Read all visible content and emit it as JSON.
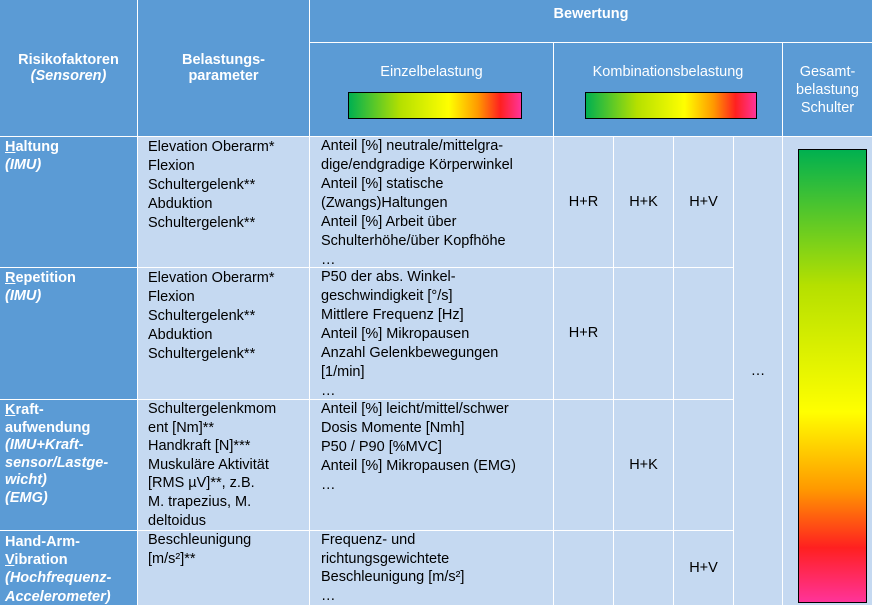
{
  "header": {
    "risk_title": "Risikofaktoren",
    "risk_subtitle": "(Sensoren)",
    "param_title_1": "Belastungs-",
    "param_title_2": "parameter",
    "rating": "Bewertung",
    "single": "Einzelbelastung",
    "combo": "Kombinationsbelastung",
    "total_1": "Gesamt-",
    "total_2": "belastung",
    "total_3": "Schulter"
  },
  "rows": [
    {
      "risk_lines": [
        {
          "first": "H",
          "rest": "altung"
        },
        {
          "text": "(IMU)"
        }
      ],
      "params": [
        "Elevation Oberarm*",
        "Flexion",
        "Schultergelenk**",
        "Abduktion",
        "Schultergelenk**"
      ],
      "metrics": [
        "Anteil [%] neutrale/mittelgra-",
        "dige/endgradige Körperwinkel",
        "Anteil [%] statische",
        "(Zwangs)Haltungen",
        "Anteil [%] Arbeit über",
        "Schulterhöhe/über Kopfhöhe",
        "…"
      ],
      "combos": [
        "H+R",
        "H+K",
        "H+V"
      ]
    },
    {
      "risk_lines": [
        {
          "first": "R",
          "rest": "epetition"
        },
        {
          "text": "(IMU)"
        }
      ],
      "params": [
        "Elevation Oberarm*",
        "Flexion",
        "Schultergelenk**",
        "Abduktion",
        "Schultergelenk**"
      ],
      "metrics": [
        "P50 der abs. Winkel-",
        "geschwindigkeit [°/s]",
        "Mittlere Frequenz [Hz]",
        "Anteil [%] Mikropausen",
        "Anzahl Gelenkbewegungen",
        "[1/min]",
        "…"
      ],
      "combos": [
        "H+R",
        "",
        ""
      ]
    },
    {
      "risk_lines": [
        {
          "first": "K",
          "rest": "raft-"
        },
        {
          "text": "aufwendung"
        },
        {
          "text": "(IMU+Kraft-"
        },
        {
          "text": "sensor/Lastge-"
        },
        {
          "text": "wicht)"
        },
        {
          "text": "(EMG)"
        }
      ],
      "params": [
        "Schultergelenkmom",
        "ent [Nm]**",
        "Handkraft [N]***",
        "Muskuläre Aktivität",
        "[RMS µV]**, z.B.",
        "M. trapezius, M.",
        "deltoidus"
      ],
      "metrics": [
        "Anteil [%] leicht/mittel/schwer",
        "Dosis Momente [Nmh]",
        "P50 / P90 [%MVC]",
        "Anteil [%] Mikropausen (EMG)",
        "…"
      ],
      "combos": [
        "",
        "H+K",
        ""
      ]
    },
    {
      "risk_lines": [
        {
          "text": "Hand-Arm-"
        },
        {
          "first": "V",
          "rest": "ibration"
        },
        {
          "text": "(Hochfrequenz-"
        },
        {
          "text": "Accelerometer)"
        }
      ],
      "params": [
        "Beschleunigung",
        "[m/s²]**"
      ],
      "metrics": [
        "Frequenz- und",
        "richtungsgewichtete",
        "Beschleunigung [m/s²]",
        "…"
      ],
      "combos": [
        "",
        "",
        "H+V"
      ]
    }
  ],
  "more_combos": "…",
  "colors": {
    "header_blue": "#5b9bd5",
    "body_blue": "#c5d9f1",
    "scale": [
      "#00b050",
      "#b5e000",
      "#ffff00",
      "#ff9900",
      "#ff2020",
      "#ff3399"
    ]
  }
}
